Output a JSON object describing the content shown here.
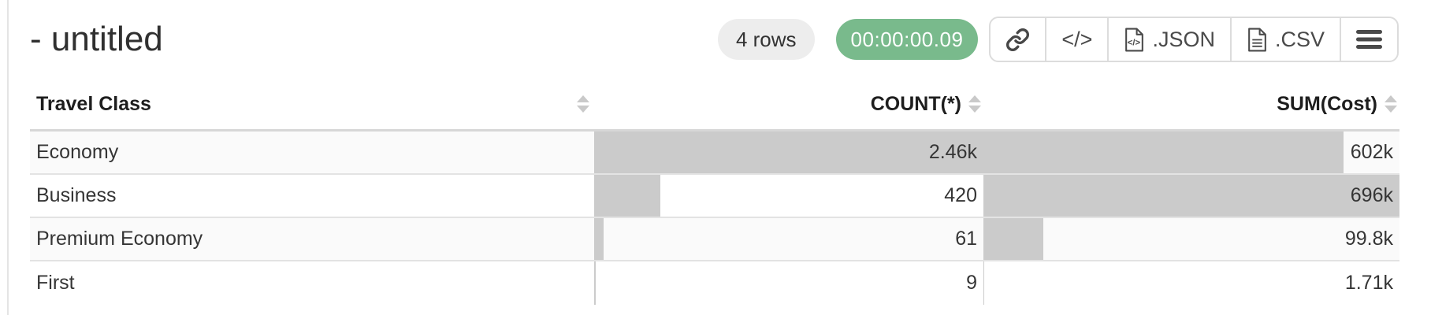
{
  "header": {
    "title": "- untitled",
    "row_count": "4 rows",
    "elapsed": "00:00:00.09"
  },
  "toolbar": {
    "link_button": "",
    "code_label": "</>",
    "json_label": ".JSON",
    "csv_label": ".CSV",
    "icons": [
      "link-icon",
      "code-icon",
      "json-file-icon",
      "csv-file-icon",
      "menu-icon"
    ]
  },
  "colors": {
    "timer_green": "#79ba8c",
    "badge_gray": "#ededed",
    "bar_gray": "#cbcbcb",
    "row_stripe": "#fafafa",
    "row_border": "#e3e3e3"
  },
  "chart_data": {
    "type": "table",
    "title": "query result grid with inline bar charts",
    "bar_scaling": "per-column max",
    "columns": [
      {
        "label": "Travel Class",
        "align": "left",
        "sortable": true
      },
      {
        "label": "COUNT(*)",
        "align": "right",
        "sortable": true
      },
      {
        "label": "SUM(Cost)",
        "align": "right",
        "sortable": true
      }
    ],
    "rows": [
      {
        "travel_class": "Economy",
        "count": 2460,
        "count_display": "2.46k",
        "sum": 602000,
        "sum_display": "602k"
      },
      {
        "travel_class": "Business",
        "count": 420,
        "count_display": "420",
        "sum": 696000,
        "sum_display": "696k"
      },
      {
        "travel_class": "Premium Economy",
        "count": 61,
        "count_display": "61",
        "sum": 99800,
        "sum_display": "99.8k"
      },
      {
        "travel_class": "First",
        "count": 9,
        "count_display": "9",
        "sum": 1710,
        "sum_display": "1.71k"
      }
    ]
  }
}
